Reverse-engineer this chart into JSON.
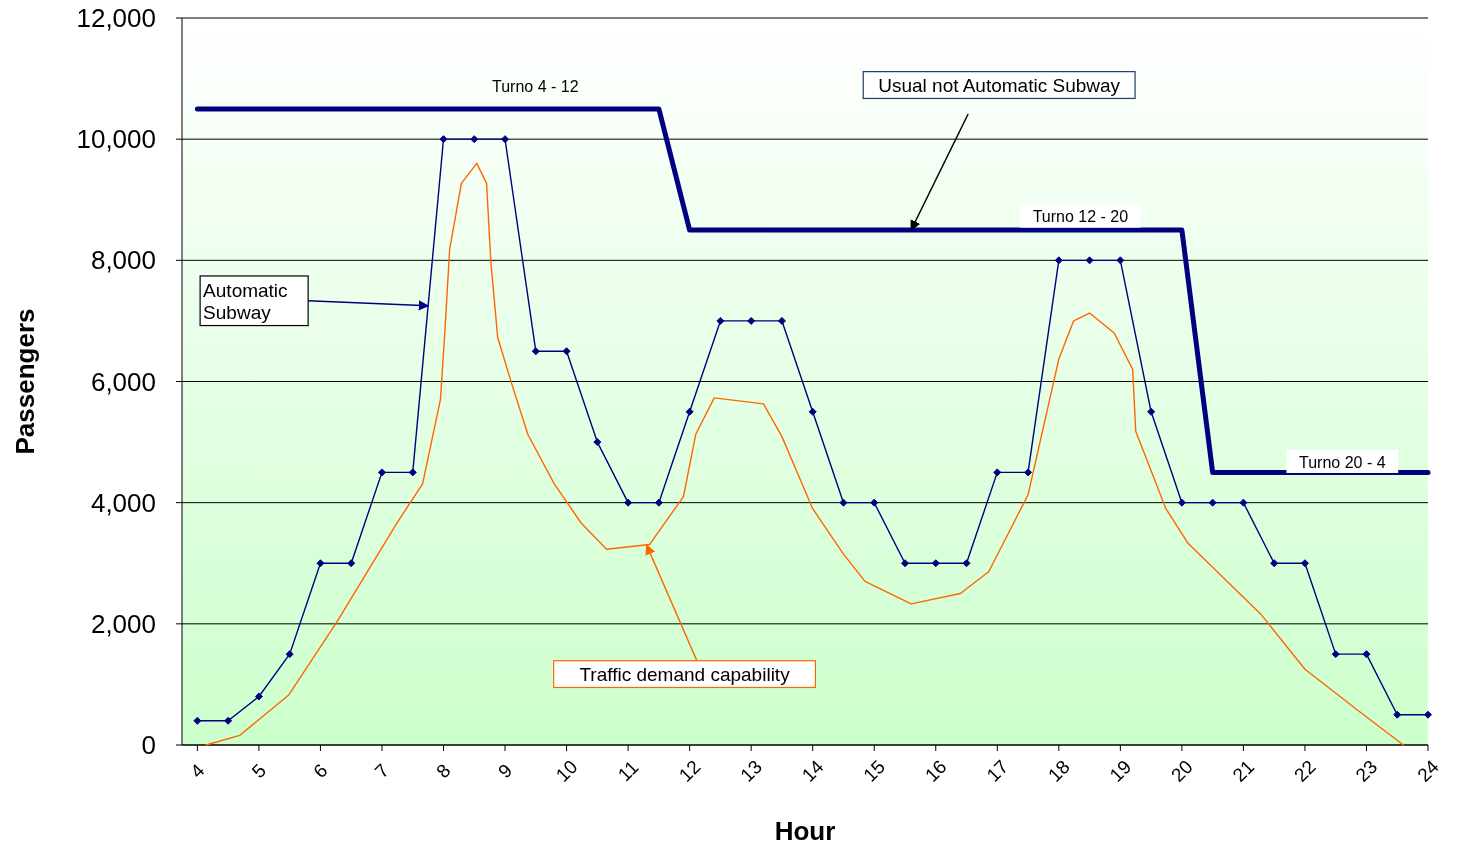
{
  "chart_data": {
    "type": "line",
    "xlabel": "Hour",
    "ylabel": "Passengers",
    "xlim": [
      3.75,
      24
    ],
    "xticks": [
      4,
      5,
      6,
      7,
      8,
      9,
      10,
      11,
      12,
      13,
      14,
      15,
      16,
      17,
      18,
      19,
      20,
      21,
      22,
      23,
      24
    ],
    "ylim": [
      0,
      12000
    ],
    "yticks": [
      0,
      {
        "value": 2000,
        "label": "2,000"
      },
      {
        "value": 4000,
        "label": "4,000"
      },
      {
        "value": 6000,
        "label": "6,000"
      },
      {
        "value": 8000,
        "label": "8,000"
      },
      {
        "value": 10000,
        "label": "10,000"
      },
      {
        "value": 12000,
        "label": "12,000"
      }
    ],
    "grid": "y",
    "series": [
      {
        "color": "#000080",
        "marker": "none",
        "x": [
          4,
          11.5,
          12,
          20,
          20.5,
          24
        ],
        "values": [
          10500,
          10500,
          8500,
          8500,
          4500,
          4500
        ]
      },
      {
        "color": "#000080",
        "marker": "diamond",
        "x": [
          4,
          4.5,
          5,
          5.5,
          6,
          6.5,
          7,
          7.5,
          8,
          8.5,
          9,
          9.5,
          10,
          10.5,
          11,
          11.5,
          12,
          12.5,
          13,
          13.5,
          14,
          14.5,
          15,
          15.5,
          16,
          16.5,
          17,
          17.5,
          18,
          18.5,
          19,
          19.5,
          20,
          20.5,
          21,
          21.5,
          22,
          22.5,
          23,
          23.5,
          24
        ],
        "values": [
          400,
          400,
          800,
          1500,
          3000,
          3000,
          4500,
          4500,
          10000,
          10000,
          10000,
          6500,
          6500,
          5000,
          4000,
          4000,
          5500,
          7000,
          7000,
          7000,
          5500,
          4000,
          4000,
          3000,
          3000,
          3000,
          4500,
          4500,
          8000,
          8000,
          8000,
          5500,
          4000,
          4000,
          4000,
          3000,
          3000,
          1500,
          1500,
          500,
          500
        ]
      },
      {
        "color": "#ff6600",
        "marker": "none",
        "x": [
          4.14,
          4.69,
          5.48,
          6.26,
          7.24,
          7.66,
          7.95,
          8.02,
          8.1,
          8.29,
          8.54,
          8.7,
          8.77,
          8.88,
          9.1,
          9.37,
          9.8,
          10.24,
          10.65,
          11.35,
          11.9,
          12.1,
          12.4,
          13.2,
          13.5,
          14,
          14.5,
          14.85,
          15.6,
          16.4,
          16.86,
          17.5,
          18,
          18.24,
          18.5,
          18.9,
          19.2,
          19.25,
          19.74,
          20.1,
          21.3,
          22,
          22.9,
          23.6
        ],
        "values": [
          0,
          160,
          820,
          2020,
          3660,
          4310,
          5700,
          6790,
          8180,
          9270,
          9600,
          9270,
          7970,
          6730,
          5990,
          5130,
          4310,
          3660,
          3230,
          3310,
          4100,
          5130,
          5730,
          5630,
          5090,
          3900,
          3150,
          2700,
          2330,
          2500,
          2860,
          4130,
          6370,
          7000,
          7130,
          6800,
          6200,
          5180,
          3900,
          3330,
          2140,
          1250,
          540,
          0
        ]
      }
    ],
    "annotations": [
      {
        "text": "Automatic Subway",
        "x": 7.75,
        "y": 7250
      },
      {
        "text": "Usual not Automatic Subway",
        "x": 15.6,
        "y": 8500
      },
      {
        "text": "Traffic demand capability",
        "x": 11.3,
        "y": 3300
      },
      {
        "text": "Turno 4 - 12",
        "x": 8.5,
        "y": 10500
      },
      {
        "text": "Turno 12 - 20",
        "x": 18.4,
        "y": 8500
      },
      {
        "text": "Turno 20 - 4",
        "x": 22.9,
        "y": 4500
      }
    ]
  }
}
